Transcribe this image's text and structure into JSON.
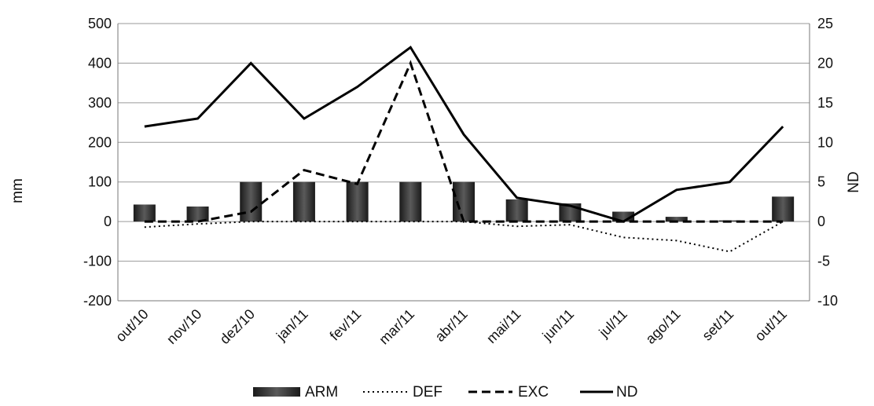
{
  "chart_data": {
    "type": "bar-line-combo",
    "categories": [
      "out/10",
      "nov/10",
      "dez/10",
      "jan/11",
      "fev/11",
      "mar/11",
      "abr/11",
      "mai/11",
      "jun/11",
      "jul/11",
      "ago/11",
      "set/11",
      "out/11"
    ],
    "ylabel": "mm",
    "y2label": "ND",
    "ylim": [
      -200,
      500
    ],
    "y2lim": [
      -10,
      25
    ],
    "yticks": [
      -200,
      -100,
      0,
      100,
      200,
      300,
      400,
      500
    ],
    "y2ticks": [
      -10,
      -5,
      0,
      5,
      10,
      15,
      20,
      25
    ],
    "grid": true,
    "legend_position": "bottom",
    "series": [
      {
        "name": "ARM",
        "kind": "bar",
        "axis": "left",
        "color": "#2b2b2b",
        "values": [
          43,
          38,
          100,
          100,
          100,
          100,
          100,
          56,
          46,
          25,
          12,
          3,
          63
        ]
      },
      {
        "name": "DEF",
        "kind": "line",
        "style": "dotted",
        "axis": "left",
        "color": "#000000",
        "values": [
          -14,
          -6,
          0,
          0,
          0,
          0,
          0,
          -12,
          -8,
          -40,
          -48,
          -76,
          0
        ]
      },
      {
        "name": "EXC",
        "kind": "line",
        "style": "dashed",
        "axis": "left",
        "color": "#000000",
        "values": [
          0,
          0,
          25,
          130,
          95,
          400,
          0,
          0,
          0,
          0,
          0,
          0,
          0
        ]
      },
      {
        "name": "ND",
        "kind": "line",
        "style": "solid",
        "axis": "right",
        "color": "#000000",
        "values": [
          12,
          13,
          20,
          13,
          17,
          22,
          11,
          3,
          2,
          0,
          4,
          5,
          12
        ]
      }
    ]
  }
}
